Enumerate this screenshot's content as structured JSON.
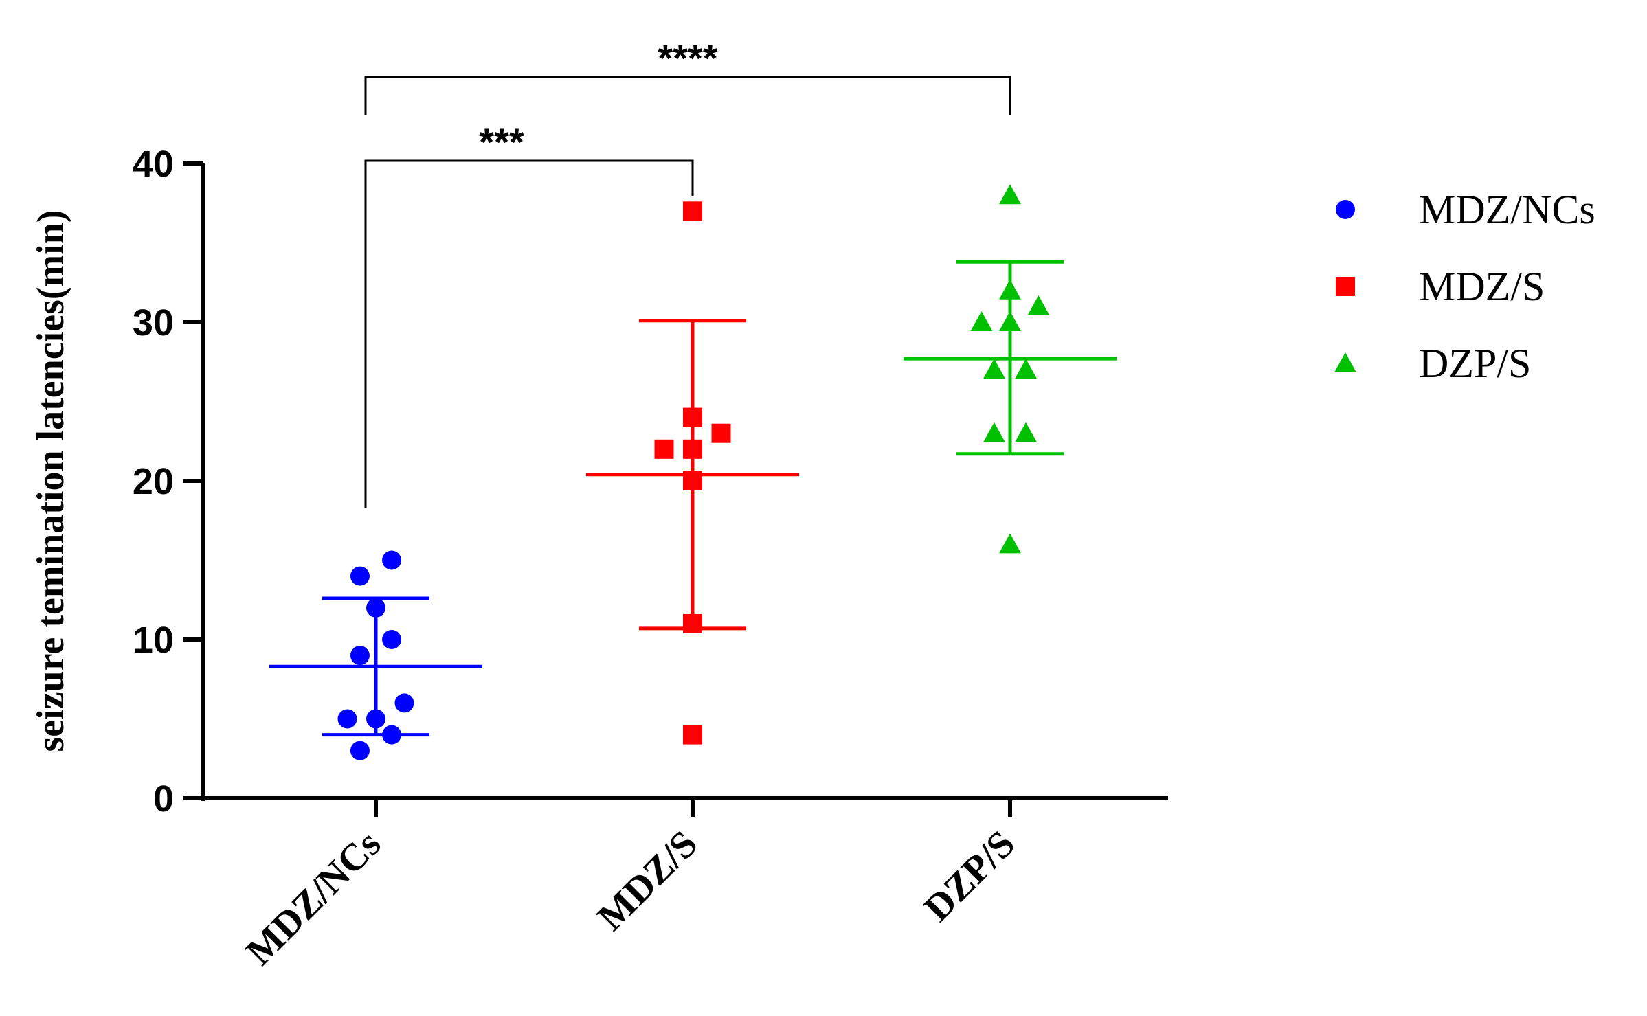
{
  "chart_data": {
    "type": "scatter",
    "ylabel": "seizure temination latencies(min)",
    "xlabel": "",
    "ylim": [
      0,
      40
    ],
    "yticks": [
      0,
      10,
      20,
      30,
      40
    ],
    "categories": [
      "MDZ/NCs",
      "MDZ/S",
      "DZP/S"
    ],
    "series": [
      {
        "name": "MDZ/NCs",
        "color": "#0000ff",
        "marker": "circle",
        "category": "MDZ/NCs",
        "points": [
          {
            "jitter": -0.05,
            "y": 3
          },
          {
            "jitter": 0.05,
            "y": 4
          },
          {
            "jitter": -0.09,
            "y": 5
          },
          {
            "jitter": 0.0,
            "y": 5
          },
          {
            "jitter": 0.09,
            "y": 6
          },
          {
            "jitter": -0.05,
            "y": 9
          },
          {
            "jitter": 0.05,
            "y": 10
          },
          {
            "jitter": 0.0,
            "y": 12
          },
          {
            "jitter": -0.05,
            "y": 14
          },
          {
            "jitter": 0.05,
            "y": 15
          }
        ],
        "mean": 8.3,
        "sd_low": 4.0,
        "sd_high": 12.6
      },
      {
        "name": "MDZ/S",
        "color": "#ff0000",
        "marker": "square",
        "category": "MDZ/S",
        "points": [
          {
            "jitter": 0.0,
            "y": 4
          },
          {
            "jitter": 0.0,
            "y": 11
          },
          {
            "jitter": 0.0,
            "y": 20
          },
          {
            "jitter": -0.09,
            "y": 22
          },
          {
            "jitter": 0.0,
            "y": 22
          },
          {
            "jitter": 0.09,
            "y": 23
          },
          {
            "jitter": 0.0,
            "y": 24
          },
          {
            "jitter": 0.0,
            "y": 37
          }
        ],
        "mean": 20.4,
        "sd_low": 10.7,
        "sd_high": 30.1
      },
      {
        "name": "DZP/S",
        "color": "#00c000",
        "marker": "triangle",
        "category": "DZP/S",
        "points": [
          {
            "jitter": 0.0,
            "y": 16
          },
          {
            "jitter": -0.05,
            "y": 23
          },
          {
            "jitter": 0.05,
            "y": 23
          },
          {
            "jitter": -0.05,
            "y": 27
          },
          {
            "jitter": 0.05,
            "y": 27
          },
          {
            "jitter": -0.09,
            "y": 30
          },
          {
            "jitter": 0.0,
            "y": 30
          },
          {
            "jitter": 0.09,
            "y": 31
          },
          {
            "jitter": 0.0,
            "y": 32
          },
          {
            "jitter": 0.0,
            "y": 38
          }
        ],
        "mean": 27.7,
        "sd_low": 21.7,
        "sd_high": 33.8
      }
    ],
    "significance": [
      {
        "from": "MDZ/NCs",
        "to": "MDZ/S",
        "label": "***"
      },
      {
        "from": "MDZ/NCs",
        "to": "DZP/S",
        "label": "****"
      }
    ],
    "legend": {
      "placement": "right",
      "entries": [
        {
          "label": "MDZ/NCs",
          "marker": "circle",
          "color": "#0000ff"
        },
        {
          "label": "MDZ/S",
          "marker": "square",
          "color": "#ff0000"
        },
        {
          "label": "DZP/S",
          "marker": "triangle",
          "color": "#00c000"
        }
      ]
    },
    "grid": false
  }
}
